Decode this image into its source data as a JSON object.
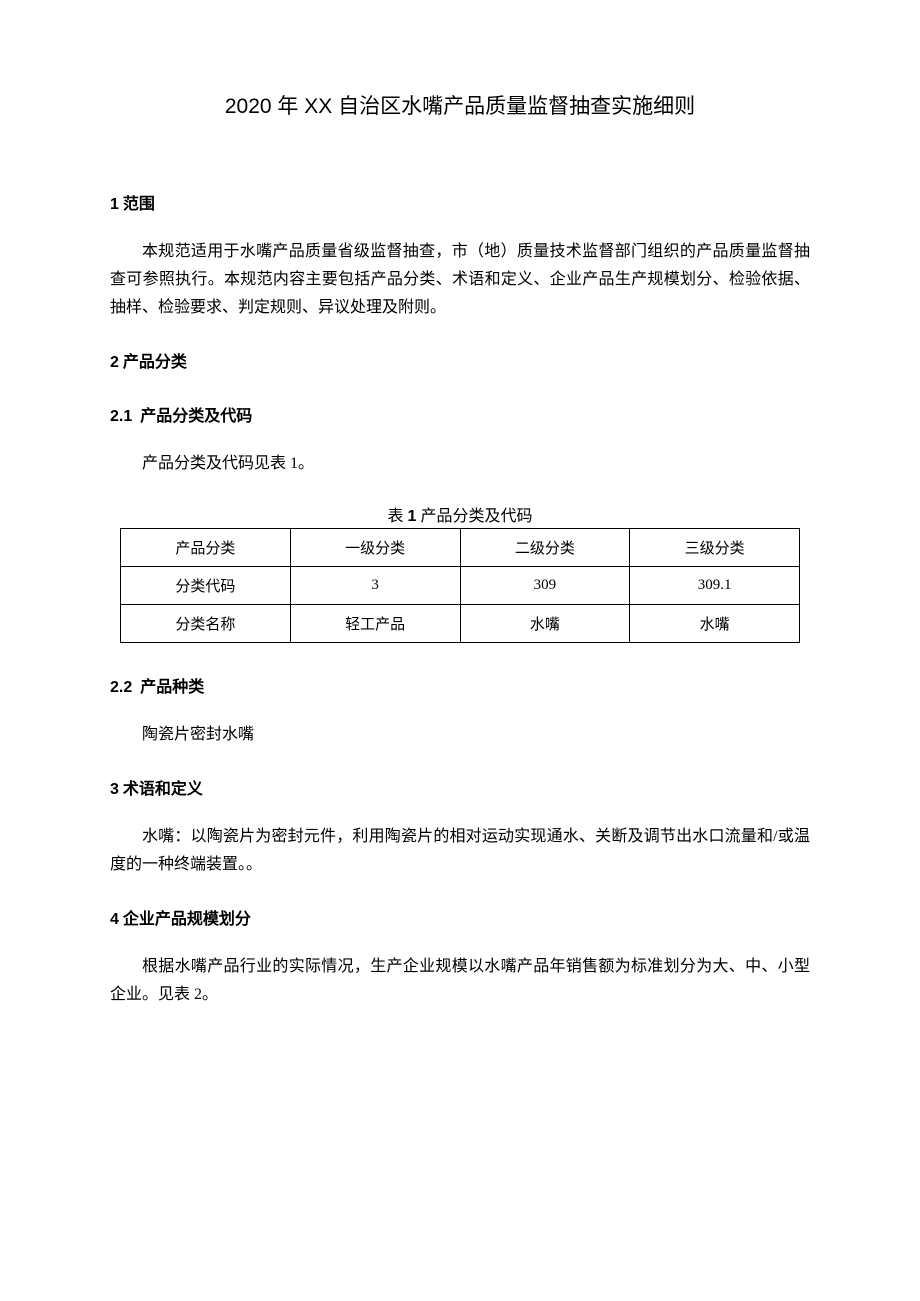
{
  "title": "2020 年 XX 自治区水嘴产品质量监督抽查实施细则",
  "sections": {
    "s1": {
      "num": "1",
      "label": " 范围"
    },
    "s2": {
      "num": "2",
      "label": " 产品分类"
    },
    "s2_1": {
      "num": "2.1",
      "label": "产品分类及代码"
    },
    "s2_2": {
      "num": "2.2",
      "label": "产品种类"
    },
    "s3": {
      "num": "3",
      "label": " 术语和定义"
    },
    "s4": {
      "num": "4",
      "label": " 企业产品规模划分"
    }
  },
  "paragraphs": {
    "p1": "本规范适用于水嘴产品质量省级监督抽查，市（地）质量技术监督部门组织的产品质量监督抽查可参照执行。本规范内容主要包括产品分类、术语和定义、企业产品生产规模划分、检验依据、抽样、检验要求、判定规则、异议处理及附则。",
    "p2_1": "产品分类及代码见表 1。",
    "p2_2": "陶瓷片密封水嘴",
    "p3": "水嘴：以陶瓷片为密封元件，利用陶瓷片的相对运动实现通水、关断及调节出水口流量和/或温度的一种终端装置。。",
    "p4": "根据水嘴产品行业的实际情况，生产企业规模以水嘴产品年销售额为标准划分为大、中、小型企业。见表 2。"
  },
  "table1": {
    "caption_prefix": "表 ",
    "caption_num": "1",
    "caption_suffix": "    产品分类及代码",
    "col_widths": [
      "25%",
      "25%",
      "25%",
      "25%"
    ],
    "rows": [
      [
        "产品分类",
        "一级分类",
        "二级分类",
        "三级分类"
      ],
      [
        "分类代码",
        "3",
        "309",
        "309.1"
      ],
      [
        "分类名称",
        "轻工产品",
        "水嘴",
        "水嘴"
      ]
    ],
    "border_color": "#000000",
    "background_color": "#ffffff",
    "font_size": 15
  }
}
